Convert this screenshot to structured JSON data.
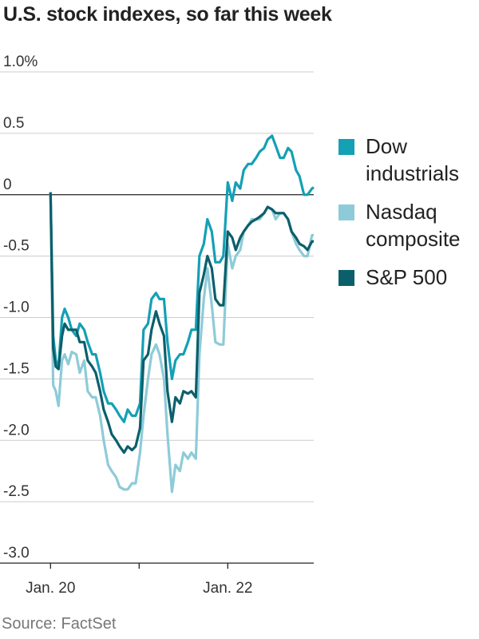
{
  "chart_data": {
    "type": "line",
    "title": "U.S. stock indexes, so far this week",
    "source": "Source: FactSet",
    "x": [
      0,
      0.03,
      0.06,
      0.09,
      0.13,
      0.16,
      0.2,
      0.24,
      0.29,
      0.33,
      0.38,
      0.42,
      0.47,
      0.51,
      0.56,
      0.6,
      0.65,
      0.69,
      0.74,
      0.78,
      0.83,
      0.87,
      0.92,
      0.96,
      1.01,
      1.05,
      1.1,
      1.14,
      1.19,
      1.23,
      1.28,
      1.32,
      1.37,
      1.41,
      1.46,
      1.5,
      1.55,
      1.59,
      1.64,
      1.68,
      1.73,
      1.77,
      1.82,
      1.86,
      1.91,
      1.95,
      2.0,
      2.05,
      2.09,
      2.14,
      2.18,
      2.23,
      2.27,
      2.32,
      2.36,
      2.41,
      2.45,
      2.5,
      2.54,
      2.59,
      2.63,
      2.68,
      2.72,
      2.77,
      2.81,
      2.86,
      2.9,
      2.95,
      2.97
    ],
    "series": [
      {
        "name": "Dow industrials",
        "color": "#14a0b5",
        "values": [
          0.02,
          -1.15,
          -1.35,
          -1.4,
          -1.0,
          -0.93,
          -1.0,
          -1.1,
          -1.15,
          -1.05,
          -1.1,
          -1.2,
          -1.3,
          -1.3,
          -1.45,
          -1.6,
          -1.7,
          -1.7,
          -1.75,
          -1.8,
          -1.85,
          -1.75,
          -1.8,
          -1.8,
          -1.7,
          -1.1,
          -1.05,
          -0.85,
          -0.8,
          -0.85,
          -0.85,
          -1.2,
          -1.5,
          -1.35,
          -1.3,
          -1.3,
          -1.2,
          -1.1,
          -1.1,
          -0.5,
          -0.4,
          -0.2,
          -0.3,
          -0.55,
          -0.55,
          -0.5,
          0.1,
          -0.05,
          0.1,
          0.05,
          0.2,
          0.25,
          0.25,
          0.3,
          0.35,
          0.38,
          0.45,
          0.48,
          0.4,
          0.3,
          0.3,
          0.38,
          0.35,
          0.2,
          0.15,
          0.0,
          0.0,
          0.05,
          0.06
        ]
      },
      {
        "name": "Nasdaq composite",
        "color": "#8ecbd8",
        "values": [
          0.02,
          -1.55,
          -1.6,
          -1.72,
          -1.35,
          -1.3,
          -1.38,
          -1.28,
          -1.3,
          -1.45,
          -1.35,
          -1.6,
          -1.65,
          -1.65,
          -1.8,
          -2.0,
          -2.2,
          -2.25,
          -2.3,
          -2.38,
          -2.4,
          -2.4,
          -2.35,
          -2.35,
          -2.1,
          -1.8,
          -1.5,
          -1.3,
          -1.22,
          -1.3,
          -1.5,
          -1.95,
          -2.42,
          -2.2,
          -2.25,
          -2.1,
          -2.15,
          -2.1,
          -2.15,
          -1.3,
          -0.85,
          -0.6,
          -0.9,
          -1.2,
          -1.22,
          -1.22,
          -0.4,
          -0.6,
          -0.5,
          -0.45,
          -0.3,
          -0.25,
          -0.2,
          -0.2,
          -0.2,
          -0.15,
          -0.1,
          -0.12,
          -0.2,
          -0.15,
          -0.15,
          -0.2,
          -0.3,
          -0.4,
          -0.45,
          -0.5,
          -0.5,
          -0.33,
          -0.33
        ]
      },
      {
        "name": "S&P 500",
        "color": "#0b5f6b",
        "values": [
          0.02,
          -1.25,
          -1.4,
          -1.42,
          -1.15,
          -1.05,
          -1.1,
          -1.1,
          -1.1,
          -1.2,
          -1.2,
          -1.35,
          -1.4,
          -1.45,
          -1.6,
          -1.75,
          -1.85,
          -1.95,
          -2.0,
          -2.05,
          -2.1,
          -2.05,
          -2.08,
          -2.05,
          -1.9,
          -1.35,
          -1.3,
          -1.1,
          -0.95,
          -1.05,
          -1.15,
          -1.6,
          -1.85,
          -1.65,
          -1.7,
          -1.6,
          -1.62,
          -1.6,
          -1.65,
          -0.8,
          -0.65,
          -0.5,
          -0.6,
          -0.85,
          -0.9,
          -0.9,
          -0.3,
          -0.35,
          -0.45,
          -0.35,
          -0.3,
          -0.25,
          -0.22,
          -0.2,
          -0.18,
          -0.15,
          -0.1,
          -0.12,
          -0.15,
          -0.15,
          -0.15,
          -0.2,
          -0.3,
          -0.35,
          -0.4,
          -0.42,
          -0.45,
          -0.38,
          -0.38
        ]
      }
    ],
    "xlim": [
      -0.57,
      2.97
    ],
    "xticks": [
      {
        "value": 0,
        "label": "Jan. 20"
      },
      {
        "value": 1,
        "label": null
      },
      {
        "value": 2,
        "label": "Jan. 22"
      }
    ],
    "ylim": [
      -3.0,
      1.0
    ],
    "yticks": [
      {
        "value": 1.0,
        "label": "1.0%"
      },
      0.5,
      0,
      -0.5,
      {
        "value": -1.0,
        "label": "-1.0"
      },
      -1.5,
      {
        "value": -2.0,
        "label": "-2.0"
      },
      -2.5,
      {
        "value": -3.0,
        "label": "-3.0"
      }
    ],
    "grid": true,
    "legend": "right"
  }
}
